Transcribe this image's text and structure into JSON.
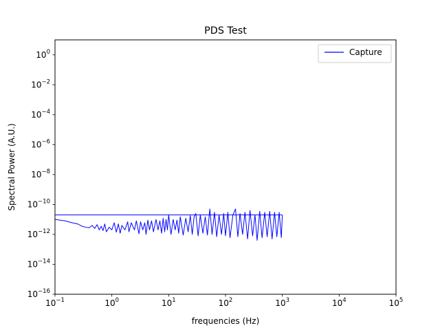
{
  "chart_data": {
    "type": "line",
    "title": "PDS Test",
    "xlabel": "frequencies (Hz)",
    "ylabel": "Spectral Power (A.U.)",
    "x_scale": "log",
    "y_scale": "log",
    "xlim": [
      0.1,
      100000
    ],
    "ylim": [
      1e-16,
      10
    ],
    "x_ticks": [
      {
        "value": 0.1,
        "base": "10",
        "exp": "−1"
      },
      {
        "value": 1,
        "base": "10",
        "exp": "0"
      },
      {
        "value": 10,
        "base": "10",
        "exp": "1"
      },
      {
        "value": 100,
        "base": "10",
        "exp": "2"
      },
      {
        "value": 1000,
        "base": "10",
        "exp": "3"
      },
      {
        "value": 10000,
        "base": "10",
        "exp": "4"
      },
      {
        "value": 100000,
        "base": "10",
        "exp": "5"
      }
    ],
    "y_ticks": [
      {
        "value": 1,
        "base": "10",
        "exp": "0"
      },
      {
        "value": 0.01,
        "base": "10",
        "exp": "−2"
      },
      {
        "value": 0.0001,
        "base": "10",
        "exp": "−4"
      },
      {
        "value": 1e-06,
        "base": "10",
        "exp": "−6"
      },
      {
        "value": 1e-08,
        "base": "10",
        "exp": "−8"
      },
      {
        "value": 1e-10,
        "base": "10",
        "exp": "−10"
      },
      {
        "value": 1e-12,
        "base": "10",
        "exp": "−12"
      },
      {
        "value": 1e-14,
        "base": "10",
        "exp": "−14"
      },
      {
        "value": 1e-16,
        "base": "10",
        "exp": "−16"
      }
    ],
    "grid": false,
    "legend": {
      "position": "top-right"
    },
    "series": [
      {
        "name": "Capture",
        "color": "#0000ff",
        "x": [
          0.1,
          0.15,
          0.2,
          0.25,
          0.3,
          0.35,
          0.4,
          0.45,
          0.5,
          0.55,
          0.6,
          0.65,
          0.7,
          0.75,
          0.8,
          0.9,
          1.0,
          1.1,
          1.2,
          1.3,
          1.4,
          1.5,
          1.7,
          1.9,
          2.0,
          2.2,
          2.5,
          2.7,
          3.0,
          3.2,
          3.5,
          3.8,
          4.0,
          4.3,
          4.6,
          5.0,
          5.4,
          6.0,
          6.5,
          7.0,
          7.5,
          8.0,
          8.5,
          9.0,
          9.5,
          10,
          11,
          12,
          13,
          14,
          15,
          16,
          18,
          20,
          22,
          24,
          26,
          28,
          30,
          33,
          36,
          40,
          44,
          48,
          53,
          58,
          64,
          70,
          77,
          85,
          93,
          100,
          110,
          120,
          135,
          150,
          165,
          180,
          200,
          220,
          245,
          270,
          300,
          330,
          360,
          400,
          440,
          490,
          540,
          600,
          660,
          730,
          800,
          880,
          960,
          1000
        ],
        "y": [
          1e-11,
          8e-12,
          6e-12,
          5e-12,
          3.5e-12,
          3e-12,
          2.8e-12,
          4e-12,
          2.5e-12,
          4.5e-12,
          2e-12,
          3.5e-12,
          1.8e-12,
          5e-12,
          1.5e-12,
          3e-12,
          2e-12,
          6e-12,
          1.4e-12,
          5e-12,
          1.2e-12,
          4e-12,
          2e-12,
          7e-12,
          1.5e-12,
          6e-12,
          2e-12,
          8e-12,
          1.1e-12,
          7e-12,
          2e-12,
          6e-12,
          1e-12,
          9e-12,
          2e-12,
          8e-12,
          1.5e-12,
          1e-11,
          2e-12,
          8e-12,
          1.2e-12,
          1.2e-11,
          1.5e-12,
          1e-11,
          2e-12,
          2e-11,
          1e-12,
          1e-11,
          2e-12,
          9e-12,
          1.2e-12,
          1.5e-11,
          9e-13,
          1.2e-11,
          1.5e-12,
          1.8e-11,
          1e-12,
          1.5e-11,
          2.5e-11,
          8e-13,
          2e-11,
          1.2e-12,
          1.5e-11,
          9e-13,
          5e-11,
          1e-12,
          3e-11,
          7e-13,
          2e-11,
          1e-12,
          2.5e-11,
          8e-13,
          3e-11,
          6e-13,
          2e-11,
          5e-11,
          7e-13,
          2.5e-11,
          1e-12,
          3e-11,
          5e-13,
          4e-11,
          8e-13,
          2e-11,
          4e-13,
          3.5e-11,
          6e-13,
          3e-11,
          7e-13,
          3.5e-11,
          5e-13,
          3e-11,
          7e-13,
          3e-11,
          6e-13,
          2e-11
        ]
      },
      {
        "name": "",
        "color": "#0000ff",
        "x": [
          1000,
          1000,
          0.1
        ],
        "y": [
          2e-11,
          2e-11,
          2e-11
        ]
      }
    ]
  }
}
